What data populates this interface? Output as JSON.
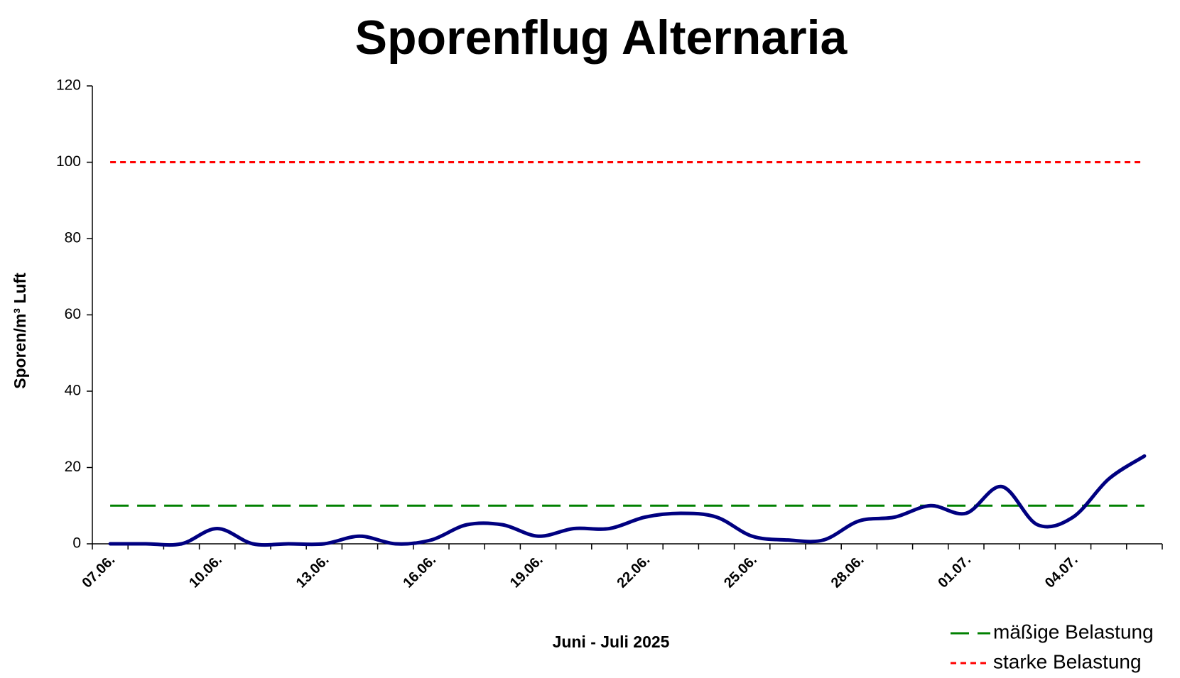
{
  "chart_data": {
    "type": "line",
    "title": "Sporenflug Alternaria",
    "x_label": "Juni - Juli 2025",
    "y_label": "Sporen/m³ Luft",
    "categories": [
      "07.06.",
      null,
      null,
      "10.06.",
      null,
      null,
      "13.06.",
      null,
      null,
      "16.06.",
      null,
      null,
      "19.06.",
      null,
      null,
      "22.06.",
      null,
      null,
      "25.06.",
      null,
      null,
      "28.06.",
      null,
      null,
      "01.07.",
      null,
      null,
      "04.07.",
      null,
      null
    ],
    "series": [
      {
        "color": "#000080",
        "smooth": true,
        "values": [
          0,
          0,
          0,
          4,
          0,
          0,
          0,
          2,
          0,
          1,
          5,
          5,
          2,
          4,
          4,
          7,
          8,
          7,
          2,
          1,
          1,
          6,
          7,
          10,
          8,
          15,
          5,
          7,
          17,
          23
        ]
      },
      {
        "name": "mäßige Belastung",
        "color": "#008000",
        "dash": "long",
        "values": [
          10,
          10,
          10,
          10,
          10,
          10,
          10,
          10,
          10,
          10,
          10,
          10,
          10,
          10,
          10,
          10,
          10,
          10,
          10,
          10,
          10,
          10,
          10,
          10,
          10,
          10,
          10,
          10,
          10,
          10
        ]
      },
      {
        "name": "starke Belastung",
        "color": "#ff0000",
        "dash": "short",
        "values": [
          100,
          100,
          100,
          100,
          100,
          100,
          100,
          100,
          100,
          100,
          100,
          100,
          100,
          100,
          100,
          100,
          100,
          100,
          100,
          100,
          100,
          100,
          100,
          100,
          100,
          100,
          100,
          100,
          100,
          100
        ]
      }
    ],
    "ylim": [
      0,
      120
    ],
    "yticks": [
      0,
      20,
      40,
      60,
      80,
      100,
      120
    ],
    "grid": false,
    "legend": "bottom-right"
  }
}
